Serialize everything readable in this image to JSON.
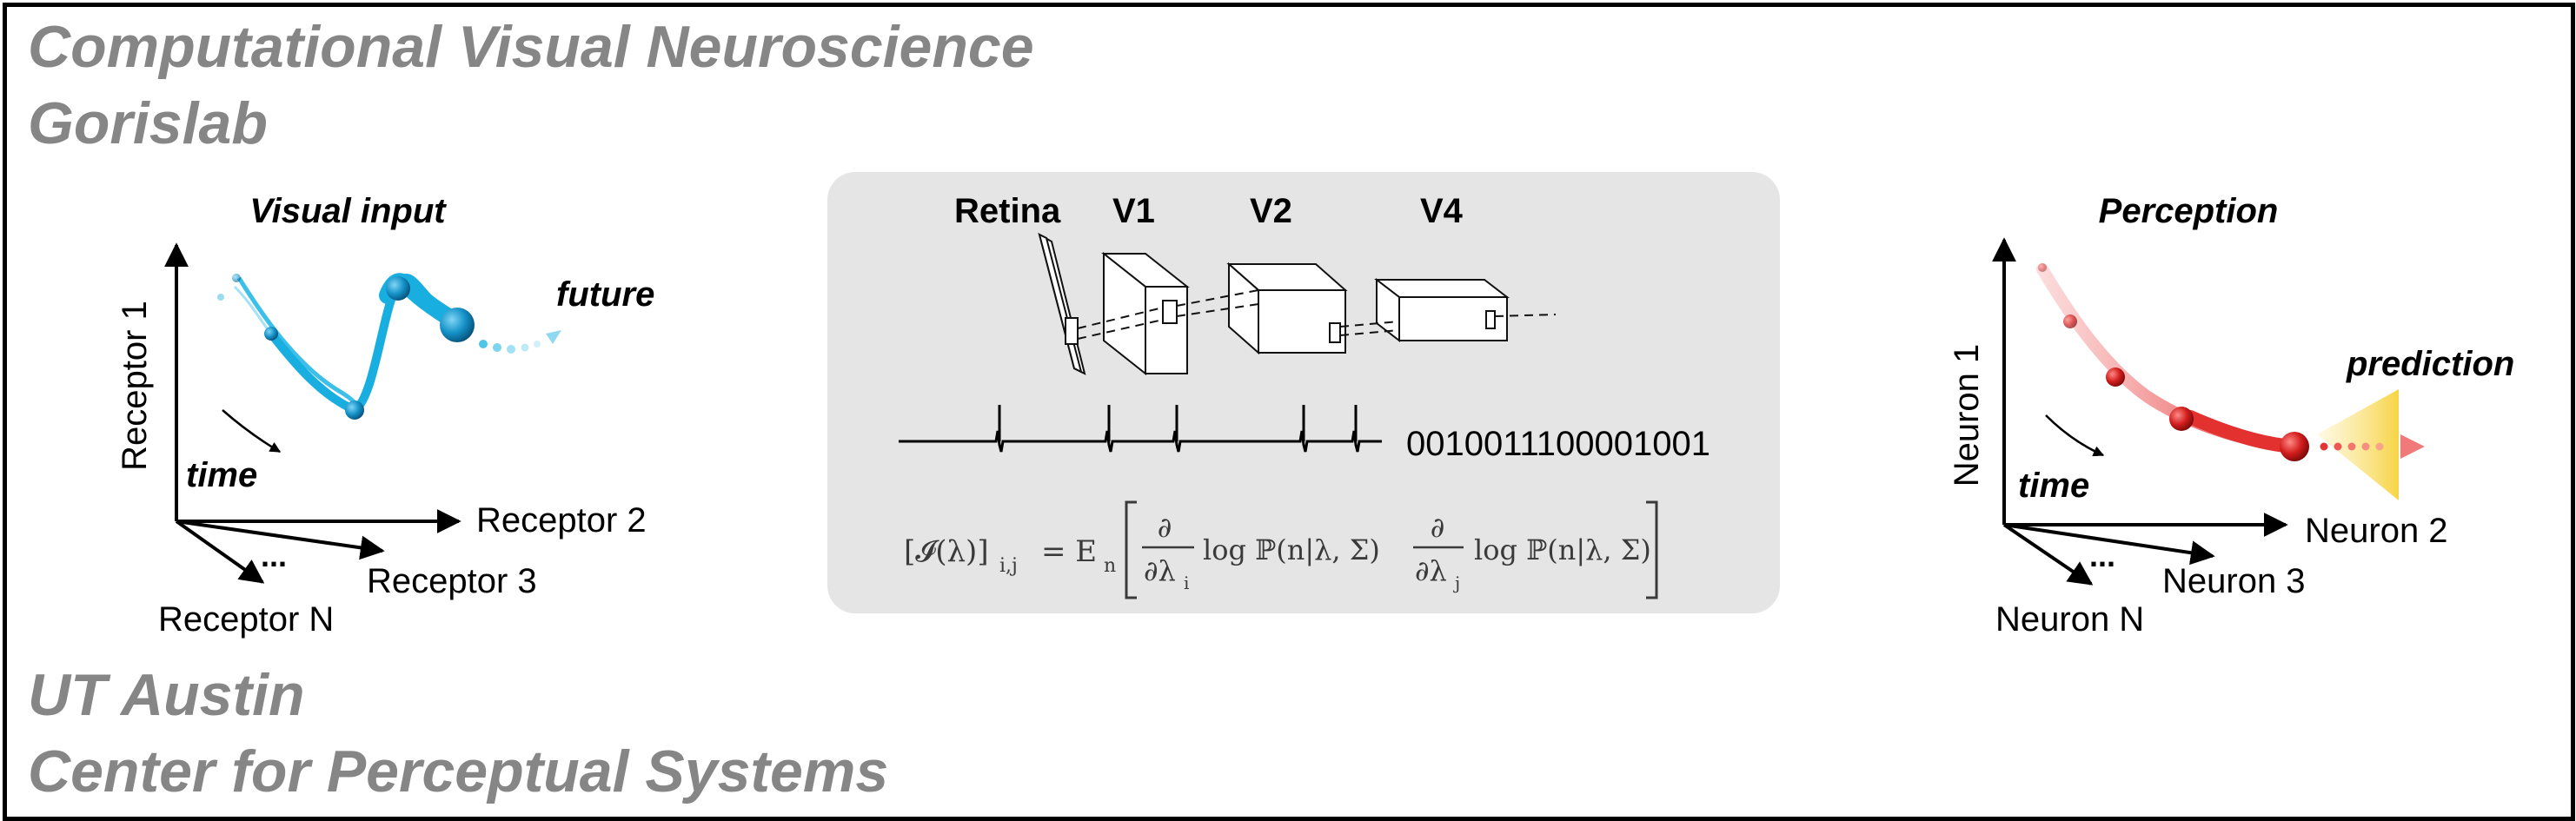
{
  "header": {
    "line1": "Computational Visual Neuroscience",
    "line2": "Gorislab"
  },
  "footer": {
    "line1": "UT Austin",
    "line2": "Center for Perceptual Systems"
  },
  "left_panel": {
    "title": "Visual input",
    "y_axis": "Receptor 1",
    "x_axis": "Receptor 2",
    "diag_axis": "Receptor 3",
    "down_axis": "Receptor N",
    "ellipsis": "...",
    "time_label": "time",
    "future_label": "future"
  },
  "center_panel": {
    "areas": [
      "Retina",
      "V1",
      "V2",
      "V4"
    ],
    "spike_code": "0010011100001001",
    "formula": {
      "lhs": "[𝓘(λ)]",
      "lhs_sub": "i,j",
      "eq": "= E",
      "eq_sub": "n",
      "d1": "∂",
      "den1": "∂λ",
      "den1_sub": "i",
      "log1": "log ℙ(n|λ, Σ)",
      "d2": "∂",
      "den2": "∂λ",
      "den2_sub": "j",
      "log2": "log ℙ(n|λ, Σ)"
    }
  },
  "right_panel": {
    "title": "Perception",
    "y_axis": "Neuron 1",
    "x_axis": "Neuron 2",
    "diag_axis": "Neuron 3",
    "down_axis": "Neuron N",
    "ellipsis": "...",
    "time_label": "time",
    "prediction_label": "prediction"
  },
  "colors": {
    "heading": "#868686",
    "panel_bg": "#e5e5e5",
    "blue": "#19aee0",
    "blue_dark": "#0b6f99",
    "red": "#e2312f",
    "red_dark": "#9b0d0d",
    "cone": "#f6d45a"
  }
}
